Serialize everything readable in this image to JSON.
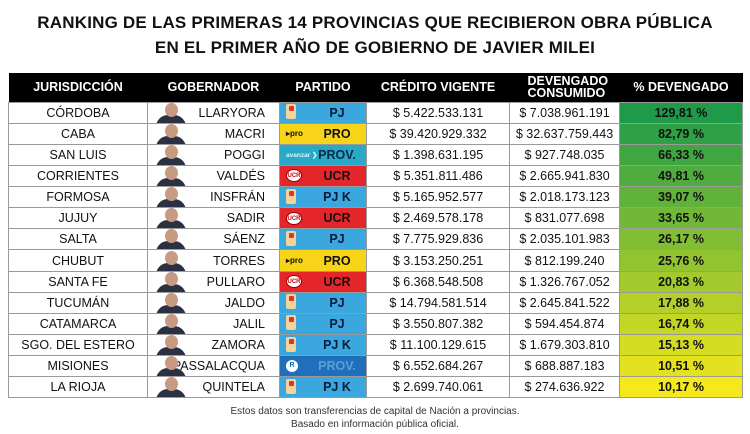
{
  "title": {
    "line1": "RANKING DE LAS PRIMERAS 14 PROVINCIAS QUE RECIBIERON OBRA PÚBLICA",
    "line2": "EN EL PRIMER AÑO DE GOBIERNO DE JAVIER MILEI"
  },
  "headers": [
    "JURISDICCIÓN",
    "GOBERNADOR",
    "PARTIDO",
    "CRÉDITO VIGENTE",
    "DEVENGADO CONSUMIDO",
    "% DEVENGADO"
  ],
  "party_styles": {
    "PJ": {
      "bg": "#3aa8de",
      "fg": "#0b1a3a",
      "logo": "pj-logo"
    },
    "PJ K": {
      "bg": "#3aa8de",
      "fg": "#0b1a3a",
      "logo": "pj-logo"
    },
    "PRO": {
      "bg": "#f7d417",
      "fg": "#111",
      "logo": "pro-logo",
      "logo_text": "▸pro"
    },
    "UCR": {
      "bg": "#e4262b",
      "fg": "#111",
      "logo": "ucr-logo",
      "logo_text": "UCR"
    },
    "PROV_avanzar": {
      "bg": "#2aa9c6",
      "fg": "#0b2a4a",
      "logo": "avanzar-logo",
      "logo_text": "avanzar ❯"
    },
    "PROV_misiones": {
      "bg": "#1f6fba",
      "fg": "#5aa0d8",
      "logo": "renovador-logo",
      "logo_text": "R"
    }
  },
  "rows": [
    {
      "jurisdiccion": "CÓRDOBA",
      "gobernador": "LLARYORA",
      "partido": "PJ",
      "style": "PJ",
      "credito": "$ 5.422.533.131",
      "devengado": "$ 7.038.961.191",
      "pct": "129,81 %",
      "pct_value": 129.81
    },
    {
      "jurisdiccion": "CABA",
      "gobernador": "MACRI",
      "partido": "PRO",
      "style": "PRO",
      "credito": "$ 39.420.929.332",
      "devengado": "$ 32.637.759.443",
      "pct": "82,79 %",
      "pct_value": 82.79
    },
    {
      "jurisdiccion": "SAN LUIS",
      "gobernador": "POGGI",
      "partido": "PROV.",
      "style": "PROV_avanzar",
      "credito": "$ 1.398.631.195",
      "devengado": "$ 927.748.035",
      "pct": "66,33 %",
      "pct_value": 66.33
    },
    {
      "jurisdiccion": "CORRIENTES",
      "gobernador": "VALDÉS",
      "partido": "UCR",
      "style": "UCR",
      "credito": "$ 5.351.811.486",
      "devengado": "$ 2.665.941.830",
      "pct": "49,81 %",
      "pct_value": 49.81
    },
    {
      "jurisdiccion": "FORMOSA",
      "gobernador": "INSFRÁN",
      "partido": "PJ K",
      "style": "PJ K",
      "credito": "$ 5.165.952.577",
      "devengado": "$ 2.018.173.123",
      "pct": "39,07 %",
      "pct_value": 39.07
    },
    {
      "jurisdiccion": "JUJUY",
      "gobernador": "SADIR",
      "partido": "UCR",
      "style": "UCR",
      "credito": "$ 2.469.578.178",
      "devengado": "$ 831.077.698",
      "pct": "33,65 %",
      "pct_value": 33.65
    },
    {
      "jurisdiccion": "SALTA",
      "gobernador": "SÁENZ",
      "partido": "PJ",
      "style": "PJ",
      "credito": "$ 7.775.929.836",
      "devengado": "$ 2.035.101.983",
      "pct": "26,17 %",
      "pct_value": 26.17
    },
    {
      "jurisdiccion": "CHUBUT",
      "gobernador": "TORRES",
      "partido": "PRO",
      "style": "PRO",
      "credito": "$ 3.153.250.251",
      "devengado": "$ 812.199.240",
      "pct": "25,76 %",
      "pct_value": 25.76
    },
    {
      "jurisdiccion": "SANTA FE",
      "gobernador": "PULLARO",
      "partido": "UCR",
      "style": "UCR",
      "credito": "$ 6.368.548.508",
      "devengado": "$ 1.326.767.052",
      "pct": "20,83 %",
      "pct_value": 20.83
    },
    {
      "jurisdiccion": "TUCUMÁN",
      "gobernador": "JALDO",
      "partido": "PJ",
      "style": "PJ",
      "credito": "$ 14.794.581.514",
      "devengado": "$ 2.645.841.522",
      "pct": "17,88 %",
      "pct_value": 17.88
    },
    {
      "jurisdiccion": "CATAMARCA",
      "gobernador": "JALIL",
      "partido": "PJ",
      "style": "PJ",
      "credito": "$ 3.550.807.382",
      "devengado": "$ 594.454.874",
      "pct": "16,74 %",
      "pct_value": 16.74
    },
    {
      "jurisdiccion": "SGO. DEL ESTERO",
      "gobernador": "ZAMORA",
      "partido": "PJ K",
      "style": "PJ K",
      "credito": "$ 11.100.129.615",
      "devengado": "$ 1.679.303.810",
      "pct": "15,13 %",
      "pct_value": 15.13
    },
    {
      "jurisdiccion": "MISIONES",
      "gobernador": "PASSALACQUA",
      "partido": "PROV.",
      "style": "PROV_misiones",
      "credito": "$ 6.552.684.267",
      "devengado": "$ 688.887.183",
      "pct": "10,51 %",
      "pct_value": 10.51
    },
    {
      "jurisdiccion": "LA RIOJA",
      "gobernador": "QUINTELA",
      "partido": "PJ K",
      "style": "PJ K",
      "credito": "$ 2.699.740.061",
      "devengado": "$ 274.636.922",
      "pct": "10,17 %",
      "pct_value": 10.17
    }
  ],
  "pct_colors": [
    "#1e9a48",
    "#f5e81c"
  ],
  "footnote": {
    "line1": "Estos datos son transferencias de capital de Nación a provincias.",
    "line2": "Basado en información pública oficial."
  }
}
